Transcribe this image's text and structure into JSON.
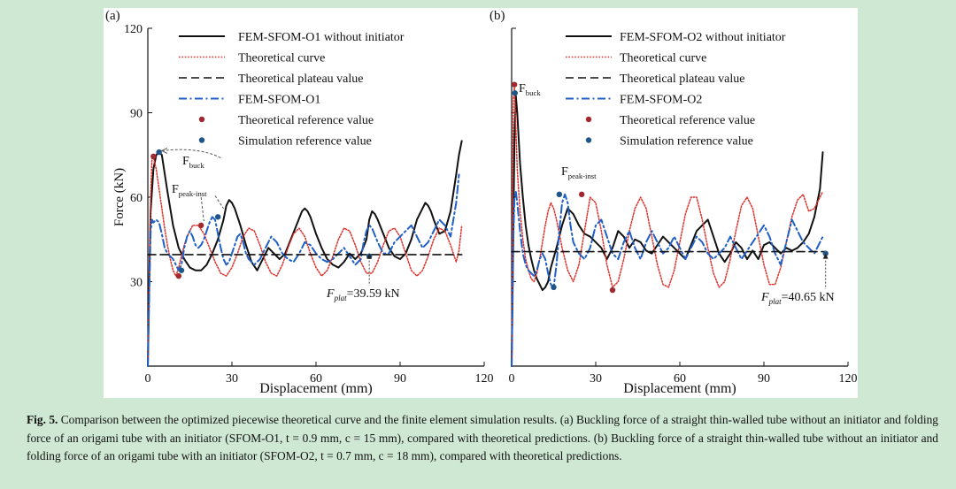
{
  "colors": {
    "page_bg": "#cfe8d3",
    "fem": "#111111",
    "theory": "#e0302a",
    "plateau": "#111111",
    "fem_init": "#1f5fc7",
    "theory_ref": "#a0282e",
    "sim_ref": "#1f5588"
  },
  "caption": {
    "label": "Fig. 5.",
    "text": "Comparison between the optimized piecewise theoretical curve and the finite element simulation results. (a) Buckling force of a straight thin-walled tube without an initiator and folding force of an origami tube with an initiator (SFOM-O1, t = 0.9 mm, c = 15 mm), compared with theoretical predictions. (b) Buckling force of a straight thin-walled tube without an initiator and folding force of an origami tube with an initiator (SFOM-O2, t = 0.7 mm, c = 18 mm), compared with theoretical predictions."
  },
  "chart_data": [
    {
      "type": "line",
      "panel_label": "(a)",
      "xlabel": "Displacement (mm)",
      "ylabel": "Force (kN)",
      "xlim": [
        0,
        120
      ],
      "ylim": [
        0,
        120
      ],
      "xticks": [
        0,
        30,
        60,
        90,
        120
      ],
      "yticks": [
        30,
        60,
        90,
        120
      ],
      "grid": false,
      "legend_position": "top",
      "legend": [
        "FEM-SFOM-O1 without initiator",
        "Theoretical curve",
        "Theoretical plateau value",
        "FEM-SFOM-O1",
        "Theoretical reference value",
        "Simulation reference value"
      ],
      "annotations": {
        "buck_main": "F",
        "buck_sub": "buck",
        "peak_main": "F",
        "peak_sub": "peak-inst",
        "plat_main": "F",
        "plat_sub": "plat",
        "plat_value": "=39.59 kN"
      },
      "plateau_value": 39.59,
      "series": [
        {
          "name": "FEM-SFOM-O1 without initiator",
          "style": "solid",
          "x": [
            0,
            0.5,
            1,
            2,
            3,
            4,
            5,
            7,
            9,
            11,
            13,
            15,
            17,
            19,
            21,
            23,
            25,
            27,
            28,
            29,
            30,
            31,
            33,
            35,
            37,
            39,
            41,
            43,
            45,
            47,
            49,
            51,
            53,
            55,
            56,
            57,
            58,
            59,
            60,
            62,
            64,
            66,
            68,
            70,
            72,
            74,
            76,
            78,
            79,
            80,
            81,
            82,
            84,
            86,
            88,
            90,
            92,
            94,
            96,
            98,
            99,
            100,
            101,
            102,
            104,
            106,
            108,
            110,
            111,
            112
          ],
          "y": [
            0,
            30,
            55,
            70,
            75,
            76,
            75,
            62,
            50,
            42,
            38,
            35,
            34,
            34,
            36,
            40,
            45,
            52,
            57,
            59,
            58,
            56,
            50,
            43,
            37,
            34,
            38,
            42,
            40,
            38,
            40,
            45,
            50,
            55,
            56,
            55,
            53,
            50,
            47,
            42,
            38,
            36,
            35,
            37,
            40,
            38,
            40,
            45,
            52,
            55,
            54,
            52,
            47,
            42,
            39,
            38,
            40,
            45,
            52,
            56,
            58,
            57,
            55,
            52,
            47,
            48,
            55,
            68,
            75,
            80
          ]
        },
        {
          "name": "Theoretical curve",
          "style": "dotted",
          "x": [
            0,
            0.5,
            1,
            1.5,
            2,
            3,
            4,
            5,
            6,
            7,
            8,
            9,
            10,
            11,
            12,
            13,
            14,
            16,
            18,
            20,
            22,
            24,
            26,
            28,
            30,
            32,
            34,
            36,
            38,
            40,
            42,
            44,
            46,
            48,
            50,
            52,
            54,
            56,
            58,
            60,
            62,
            64,
            66,
            68,
            70,
            72,
            74,
            76,
            78,
            80,
            82,
            84,
            86,
            88,
            90,
            92,
            94,
            96,
            98,
            100,
            102,
            104,
            106,
            108,
            110,
            111,
            112
          ],
          "y": [
            0,
            30,
            60,
            74,
            74,
            70,
            63,
            56,
            49,
            43,
            38,
            34,
            32,
            35,
            39,
            43,
            46,
            50,
            50,
            47,
            42,
            37,
            33,
            32,
            35,
            40,
            46,
            49,
            48,
            43,
            37,
            33,
            32,
            36,
            42,
            47,
            49,
            46,
            40,
            35,
            32,
            34,
            39,
            45,
            49,
            48,
            43,
            37,
            33,
            33,
            37,
            43,
            48,
            49,
            46,
            40,
            34,
            32,
            34,
            39,
            45,
            49,
            48,
            43,
            37,
            41,
            50
          ]
        },
        {
          "name": "FEM-SFOM-O1",
          "style": "dashdot",
          "x": [
            0,
            0.5,
            1,
            1.5,
            2,
            3,
            4,
            5,
            6,
            7,
            8,
            9,
            10,
            11,
            12,
            13,
            14,
            15,
            16,
            17,
            18,
            19,
            20,
            21,
            22,
            23,
            24,
            25,
            26,
            27,
            28,
            29,
            30,
            31,
            32,
            33,
            34,
            35,
            36,
            38,
            40,
            42,
            44,
            46,
            48,
            50,
            52,
            54,
            56,
            58,
            60,
            62,
            64,
            66,
            68,
            70,
            72,
            74,
            76,
            77,
            78,
            79,
            80,
            82,
            84,
            86,
            88,
            90,
            92,
            94,
            96,
            98,
            100,
            102,
            104,
            106,
            108,
            110,
            111
          ],
          "y": [
            0,
            25,
            48,
            52,
            51,
            52,
            51,
            47,
            42,
            40,
            39,
            38,
            36,
            34,
            36,
            42,
            46,
            48,
            46,
            43,
            42,
            43,
            45,
            48,
            51,
            53,
            52,
            47,
            42,
            38,
            36,
            37,
            40,
            43,
            46,
            47,
            44,
            40,
            38,
            36,
            38,
            42,
            46,
            44,
            40,
            38,
            37,
            40,
            44,
            43,
            40,
            38,
            37,
            38,
            40,
            42,
            39,
            36,
            38,
            44,
            48,
            50,
            49,
            44,
            40,
            40,
            44,
            46,
            48,
            50,
            46,
            42,
            44,
            48,
            52,
            50,
            46,
            58,
            68
          ]
        },
        {
          "name": "Theoretical plateau value",
          "style": "dashed",
          "x": [
            0,
            112
          ],
          "y": [
            39.59,
            39.59
          ]
        }
      ],
      "theory_ref_points": [
        {
          "x": 2,
          "y": 74.5
        },
        {
          "x": 11,
          "y": 32
        },
        {
          "x": 19,
          "y": 50
        }
      ],
      "sim_ref_points": [
        {
          "x": 4,
          "y": 76
        },
        {
          "x": 12,
          "y": 34
        },
        {
          "x": 25,
          "y": 53
        },
        {
          "x": 79,
          "y": 39
        }
      ]
    },
    {
      "type": "line",
      "panel_label": "(b)",
      "xlabel": "Displacement (mm)",
      "ylabel": "",
      "xlim": [
        0,
        120
      ],
      "ylim": [
        0,
        120
      ],
      "xticks": [
        0,
        30,
        60,
        90,
        120
      ],
      "yticks": [],
      "grid": false,
      "legend_position": "top",
      "legend": [
        "FEM-SFOM-O2 without initiator",
        "Theoretical curve",
        "Theoretical plateau value",
        "FEM-SFOM-O2",
        "Theoretical reference value",
        "Simulation reference value"
      ],
      "annotations": {
        "buck_main": "F",
        "buck_sub": "buck",
        "peak_main": "F",
        "peak_sub": "peak-inst",
        "plat_main": "F",
        "plat_sub": "plat",
        "plat_value": "=40.65 kN"
      },
      "plateau_value": 40.65,
      "series": [
        {
          "name": "FEM-SFOM-O2 without initiator",
          "style": "solid",
          "x": [
            0,
            0.5,
            1,
            1.5,
            2,
            3,
            4,
            5,
            6,
            7,
            8,
            9,
            10,
            11,
            12,
            13,
            14,
            16,
            18,
            20,
            22,
            24,
            26,
            28,
            30,
            32,
            34,
            36,
            38,
            40,
            42,
            44,
            46,
            48,
            50,
            52,
            54,
            56,
            58,
            60,
            62,
            64,
            66,
            68,
            70,
            72,
            74,
            76,
            78,
            80,
            82,
            84,
            86,
            88,
            90,
            92,
            94,
            96,
            98,
            100,
            102,
            104,
            106,
            108,
            110,
            111
          ],
          "y": [
            0,
            40,
            80,
            96,
            90,
            72,
            60,
            50,
            43,
            38,
            34,
            31,
            29,
            27,
            28,
            30,
            35,
            42,
            50,
            56,
            54,
            50,
            47,
            46,
            44,
            42,
            38,
            42,
            48,
            46,
            42,
            45,
            44,
            41,
            40,
            43,
            46,
            44,
            42,
            40,
            38,
            43,
            48,
            50,
            52,
            46,
            40,
            37,
            40,
            44,
            42,
            38,
            41,
            38,
            43,
            44,
            42,
            40,
            42,
            41,
            42,
            44,
            47,
            53,
            63,
            76
          ]
        },
        {
          "name": "Theoretical curve",
          "style": "dotted",
          "x": [
            0,
            0.3,
            0.6,
            1,
            1.5,
            2,
            3,
            4,
            5,
            6,
            7,
            8,
            9,
            10,
            11,
            12,
            13,
            14,
            15,
            16,
            18,
            20,
            22,
            24,
            26,
            28,
            30,
            32,
            34,
            36,
            38,
            40,
            42,
            44,
            46,
            48,
            50,
            52,
            54,
            56,
            58,
            60,
            62,
            64,
            66,
            68,
            70,
            72,
            74,
            76,
            78,
            80,
            82,
            84,
            86,
            88,
            90,
            92,
            94,
            96,
            98,
            100,
            102,
            104,
            106,
            108,
            110,
            111
          ],
          "y": [
            0,
            50,
            95,
            99,
            85,
            70,
            55,
            45,
            38,
            34,
            31,
            30,
            33,
            38,
            44,
            50,
            55,
            58,
            56,
            52,
            42,
            34,
            30,
            36,
            48,
            60,
            58,
            48,
            36,
            28,
            30,
            38,
            48,
            56,
            60,
            56,
            46,
            36,
            29,
            28,
            34,
            44,
            54,
            60,
            60,
            52,
            42,
            33,
            28,
            30,
            38,
            48,
            57,
            60,
            56,
            46,
            36,
            29,
            29,
            35,
            44,
            53,
            59,
            61,
            55,
            56,
            60,
            62
          ]
        },
        {
          "name": "FEM-SFOM-O2",
          "style": "dashdot",
          "x": [
            0,
            0.3,
            0.6,
            1,
            1.5,
            2,
            3,
            4,
            5,
            6,
            7,
            8,
            9,
            10,
            11,
            12,
            13,
            14,
            15,
            16,
            17,
            18,
            19,
            20,
            21,
            22,
            24,
            26,
            28,
            30,
            32,
            34,
            36,
            38,
            40,
            42,
            44,
            46,
            48,
            50,
            52,
            54,
            56,
            58,
            60,
            62,
            64,
            66,
            68,
            70,
            72,
            74,
            76,
            78,
            80,
            82,
            84,
            86,
            88,
            90,
            92,
            94,
            96,
            98,
            100,
            102,
            104,
            106,
            108,
            110,
            111
          ],
          "y": [
            0,
            20,
            45,
            60,
            62,
            58,
            48,
            40,
            36,
            34,
            33,
            32,
            34,
            38,
            40,
            38,
            33,
            29,
            28,
            36,
            48,
            58,
            61,
            58,
            50,
            44,
            40,
            38,
            42,
            50,
            52,
            46,
            40,
            38,
            44,
            48,
            42,
            38,
            44,
            48,
            44,
            40,
            42,
            46,
            42,
            38,
            42,
            46,
            44,
            40,
            38,
            40,
            42,
            46,
            42,
            38,
            41,
            44,
            47,
            50,
            46,
            40,
            36,
            44,
            52,
            48,
            44,
            42,
            40,
            44,
            46
          ]
        },
        {
          "name": "Theoretical plateau value",
          "style": "dashed",
          "x": [
            0,
            112
          ],
          "y": [
            40.65,
            40.65
          ]
        }
      ],
      "theory_ref_points": [
        {
          "x": 1,
          "y": 100
        },
        {
          "x": 25,
          "y": 61
        },
        {
          "x": 36,
          "y": 27
        }
      ],
      "sim_ref_points": [
        {
          "x": 1.2,
          "y": 97
        },
        {
          "x": 15,
          "y": 28
        },
        {
          "x": 17,
          "y": 61
        },
        {
          "x": 112,
          "y": 40
        }
      ]
    }
  ]
}
